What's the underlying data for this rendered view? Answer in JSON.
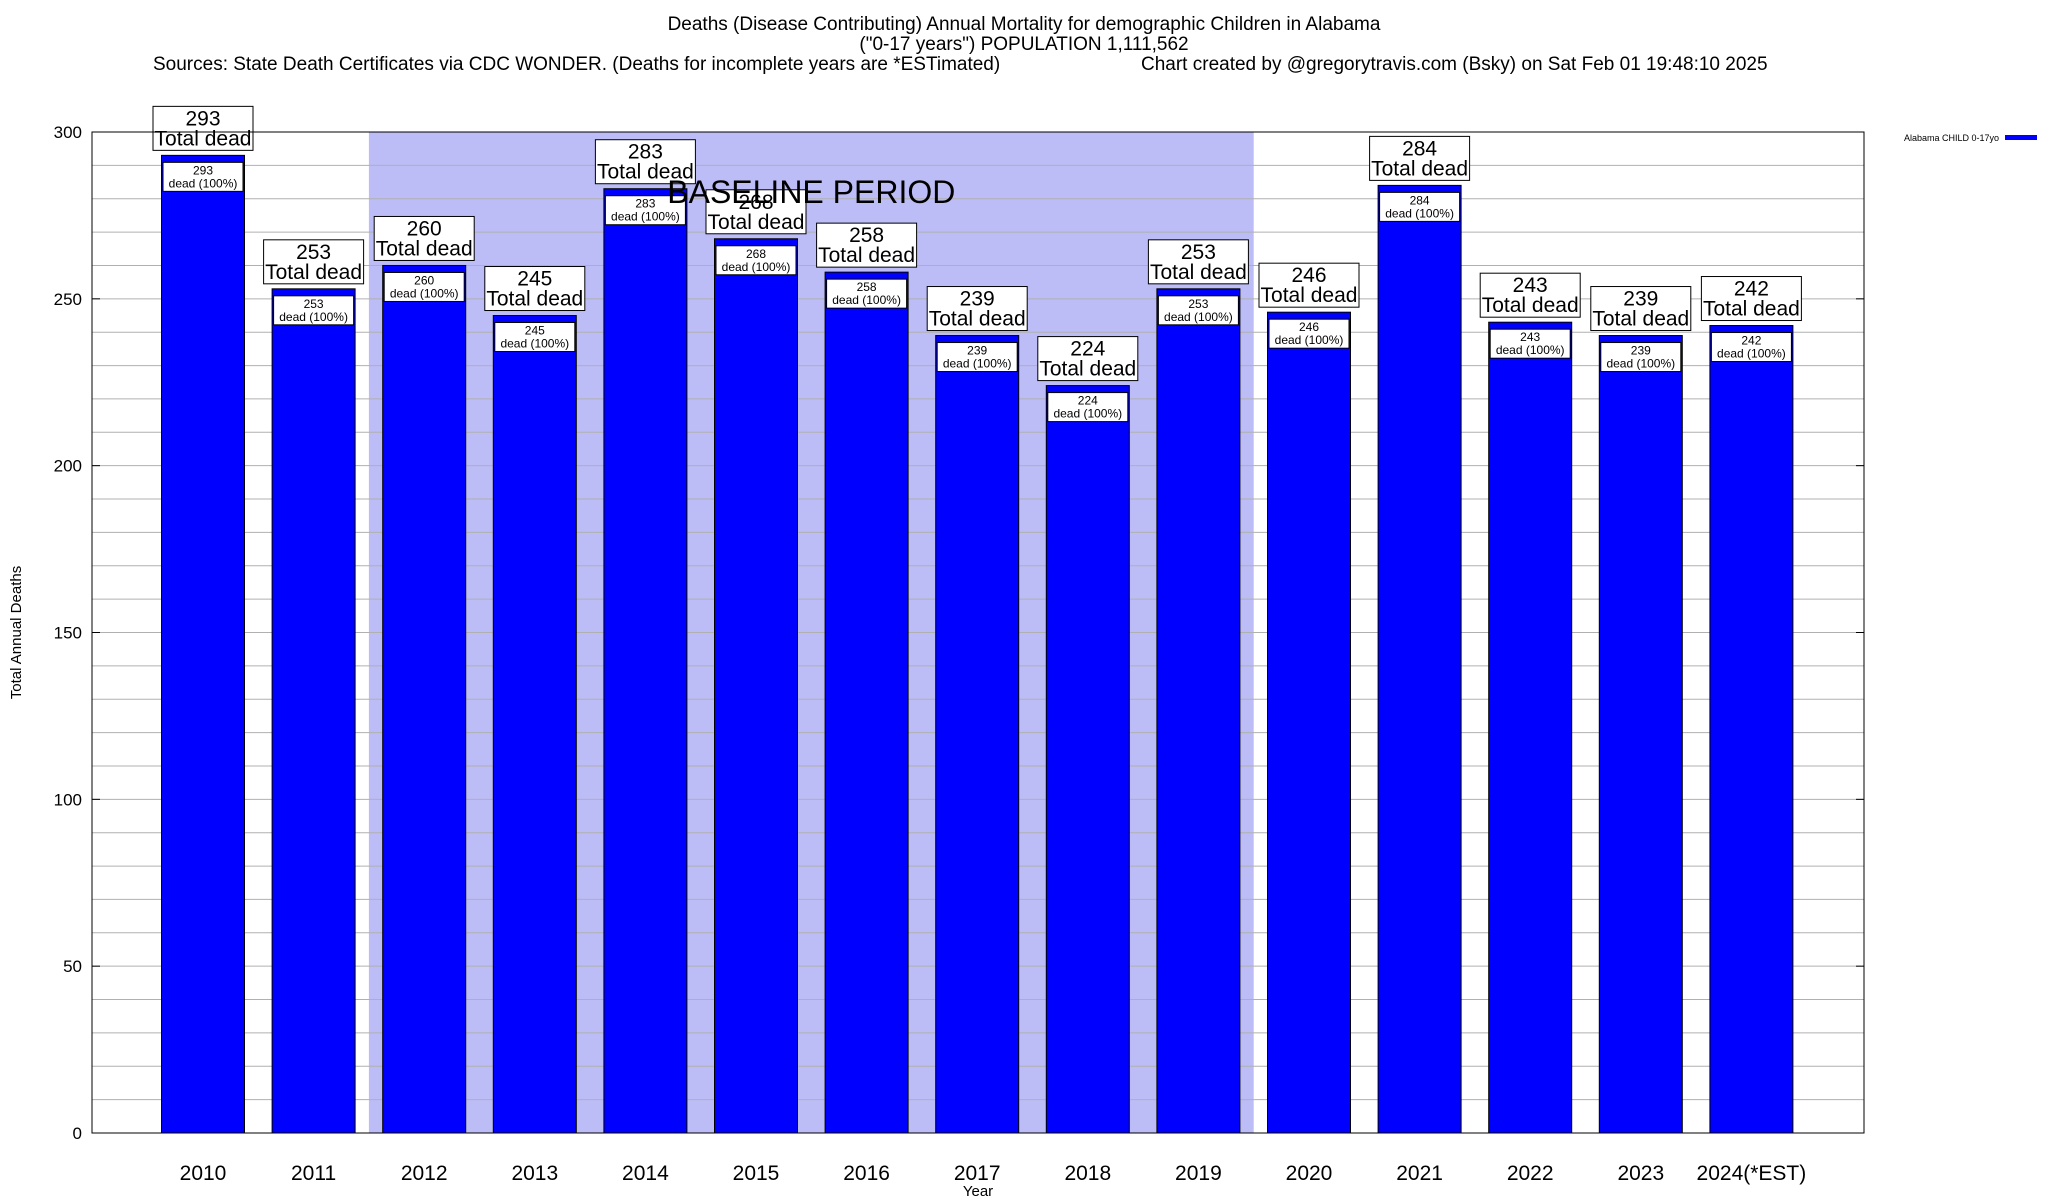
{
  "title": {
    "line1": "Deaths (Disease Contributing) Annual Mortality for demographic Children in Alabama",
    "line2": "(\"0-17 years\") POPULATION 1,111,562",
    "sources": "Sources: State Death Certificates via CDC WONDER. (Deaths for incomplete years are *ESTimated)",
    "credit": "Chart created by @gregorytravis.com (Bsky) on Sat Feb 01 19:48:10 2025"
  },
  "chart_data": {
    "type": "bar",
    "categories": [
      "2010",
      "2011",
      "2012",
      "2013",
      "2014",
      "2015",
      "2016",
      "2017",
      "2018",
      "2019",
      "2020",
      "2021",
      "2022",
      "2023",
      "2024(*EST)"
    ],
    "series": [
      {
        "name": "Alabama CHILD 0-17yo",
        "values": [
          293,
          253,
          260,
          245,
          283,
          268,
          258,
          239,
          224,
          253,
          246,
          284,
          243,
          239,
          242
        ]
      }
    ],
    "bar_top_labels": [
      "293",
      "253",
      "260",
      "245",
      "283",
      "268",
      "258",
      "239",
      "224",
      "253",
      "246",
      "284",
      "243",
      "239",
      "242"
    ],
    "total_label": "Total dead",
    "inner_labels": [
      "293",
      "253",
      "260",
      "245",
      "283",
      "268",
      "258",
      "239",
      "224",
      "253",
      "246",
      "284",
      "243",
      "239",
      "242"
    ],
    "inner_suffix": "dead (100%)",
    "baseline": {
      "label": "BASELINE PERIOD",
      "start": "2012",
      "end": "2019"
    },
    "xlabel": "Year",
    "ylabel": "Total Annual Deaths",
    "ylim": [
      0,
      300
    ],
    "yticks": [
      "0",
      "50",
      "100",
      "150",
      "200",
      "250",
      "300"
    ],
    "grid": true,
    "legend_position": "top-right",
    "colors": {
      "bar": "#0000ff",
      "baseline_shade": "#bcbcf6",
      "grid": "#b0b0b0"
    }
  }
}
